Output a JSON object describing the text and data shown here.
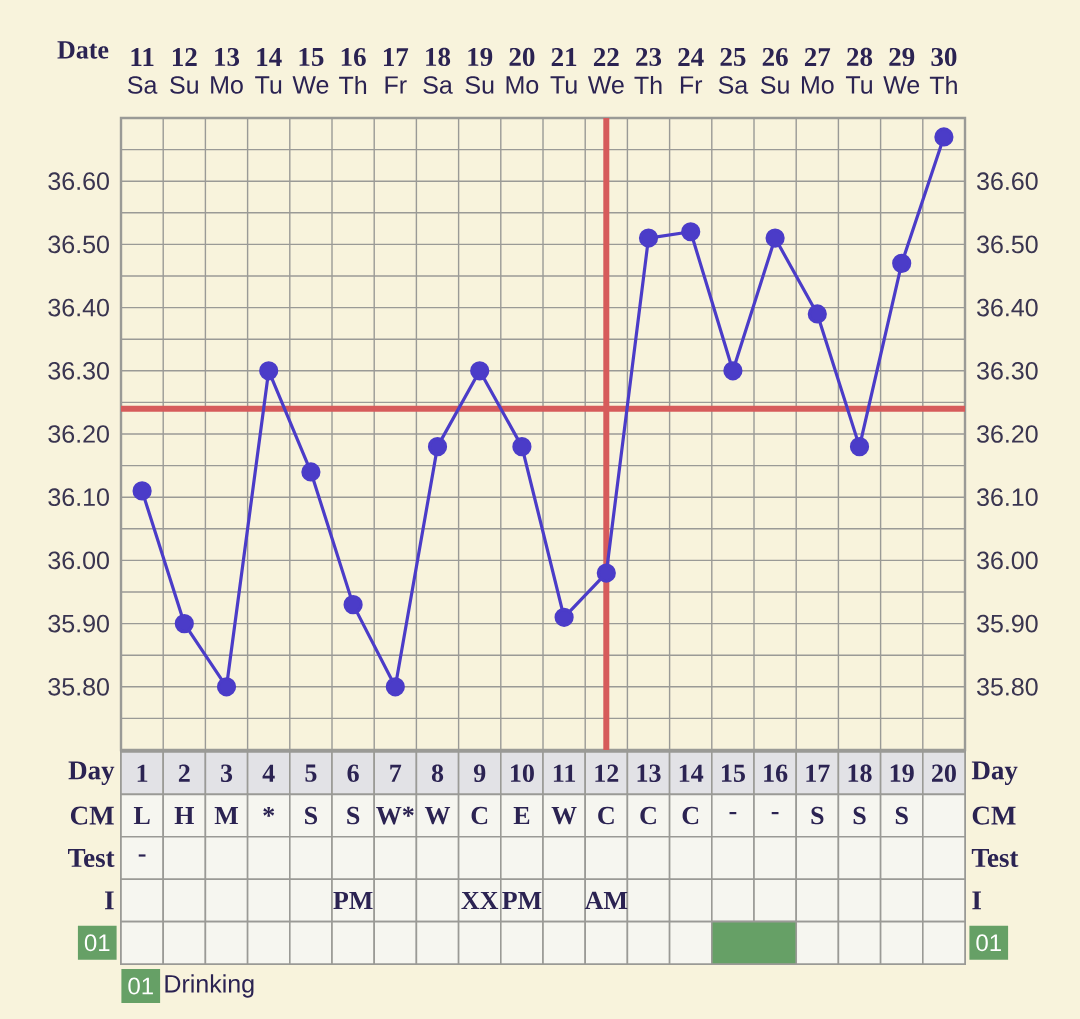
{
  "chart_data": [
    {
      "type": "line",
      "categories": [
        "Sa",
        "Su",
        "Mo",
        "Tu",
        "We",
        "Th",
        "Fr",
        "Sa",
        "Su",
        "Mo",
        "Tu",
        "We",
        "Th",
        "Fr",
        "Sa",
        "Su",
        "Mo",
        "Tu",
        "We",
        "Th"
      ],
      "values": [
        36.11,
        35.9,
        35.8,
        36.3,
        36.14,
        35.93,
        35.8,
        36.18,
        36.3,
        36.18,
        35.91,
        35.98,
        36.51,
        36.52,
        36.3,
        36.51,
        36.39,
        36.18,
        36.47,
        36.67
      ],
      "color": "#4b3cc8",
      "marker": "circle",
      "grid": true,
      "ylim": [
        35.7,
        36.7
      ],
      "yticks": [
        {
          "value": 35.7,
          "label": null
        },
        {
          "value": 35.75,
          "label": null
        },
        {
          "value": 35.8,
          "label": "35.80"
        },
        {
          "value": 35.85,
          "label": null
        },
        {
          "value": 35.9,
          "label": "35.90"
        },
        {
          "value": 35.95,
          "label": null
        },
        {
          "value": 36.0,
          "label": "36.00"
        },
        {
          "value": 36.05,
          "label": null
        },
        {
          "value": 36.1,
          "label": "36.10"
        },
        {
          "value": 36.15,
          "label": null
        },
        {
          "value": 36.2,
          "label": "36.20"
        },
        {
          "value": 36.25,
          "label": null
        },
        {
          "value": 36.3,
          "label": "36.30"
        },
        {
          "value": 36.35,
          "label": null
        },
        {
          "value": 36.4,
          "label": "36.40"
        },
        {
          "value": 36.45,
          "label": null
        },
        {
          "value": 36.5,
          "label": "36.50"
        },
        {
          "value": 36.55,
          "label": null
        },
        {
          "value": 36.6,
          "label": "36.60"
        },
        {
          "value": 36.65,
          "label": null
        },
        {
          "value": 36.7,
          "label": null
        }
      ],
      "y2lim": [
        35.7,
        36.7
      ],
      "y2ticks": [
        {
          "value": 35.8,
          "label": "35.80"
        },
        {
          "value": 35.9,
          "label": "35.90"
        },
        {
          "value": 36.0,
          "label": "36.00"
        },
        {
          "value": 36.1,
          "label": "36.10"
        },
        {
          "value": 36.2,
          "label": "36.20"
        },
        {
          "value": 36.3,
          "label": "36.30"
        },
        {
          "value": 36.4,
          "label": "36.40"
        },
        {
          "value": 36.5,
          "label": "36.50"
        },
        {
          "value": 36.6,
          "label": "36.60"
        }
      ],
      "x2label": "Date",
      "x2lim": [
        10.5,
        30.5
      ],
      "x2ticks": [
        11,
        12,
        13,
        14,
        15,
        16,
        17,
        18,
        19,
        20,
        21,
        22,
        23,
        24,
        25,
        26,
        27,
        28,
        29,
        30
      ],
      "ref_lines": [
        {
          "axis": "y",
          "value": 36.24,
          "color": "#d65b5b"
        },
        {
          "axis": "x2",
          "value": 22,
          "color": "#d65b5b"
        }
      ]
    },
    {
      "type": "heatmap",
      "xlabel": "Day",
      "categories": [
        "1",
        "2",
        "3",
        "4",
        "5",
        "6",
        "7",
        "8",
        "9",
        "10",
        "11",
        "12",
        "13",
        "14",
        "15",
        "16",
        "17",
        "18",
        "19",
        "20"
      ],
      "y_categories": [
        "CM",
        "Test",
        "I",
        "01"
      ],
      "y2_categories": [
        "CM",
        "Test",
        "I",
        "01"
      ],
      "cells": [
        [
          null,
          null,
          null,
          null,
          null,
          null,
          null,
          null,
          null,
          null,
          null,
          null,
          null,
          null,
          null,
          null,
          null,
          null,
          null,
          null
        ],
        [
          null,
          null,
          null,
          null,
          null,
          null,
          null,
          null,
          null,
          null,
          null,
          null,
          null,
          null,
          null,
          null,
          null,
          null,
          null,
          null
        ],
        [
          null,
          null,
          null,
          null,
          null,
          null,
          null,
          null,
          null,
          null,
          null,
          null,
          null,
          null,
          null,
          null,
          null,
          null,
          null,
          null
        ],
        [
          null,
          null,
          null,
          null,
          null,
          null,
          null,
          null,
          null,
          null,
          null,
          null,
          null,
          null,
          null,
          null,
          null,
          null,
          null,
          null
        ]
      ],
      "cell_labels": [
        [
          "L",
          "H",
          "M",
          "*",
          "S",
          "S",
          "W*",
          "W",
          "C",
          "E",
          "W",
          "C",
          "C",
          "C",
          "-",
          "-",
          "S",
          "S",
          "S",
          null
        ],
        [
          "-",
          null,
          null,
          null,
          null,
          null,
          null,
          null,
          null,
          null,
          null,
          null,
          null,
          null,
          null,
          null,
          null,
          null,
          null,
          null
        ],
        [
          null,
          null,
          null,
          null,
          null,
          "PM",
          null,
          null,
          "XX",
          "PM",
          null,
          "AM",
          null,
          null,
          null,
          null,
          null,
          null,
          null,
          null
        ],
        [
          null,
          null,
          null,
          null,
          null,
          null,
          null,
          null,
          null,
          null,
          null,
          null,
          null,
          null,
          null,
          null,
          null,
          null,
          null,
          null
        ]
      ],
      "bands": [
        {
          "axis": "x",
          "from": "15",
          "to": "16",
          "label": "Drinking",
          "color": "#66a066"
        }
      ]
    }
  ]
}
